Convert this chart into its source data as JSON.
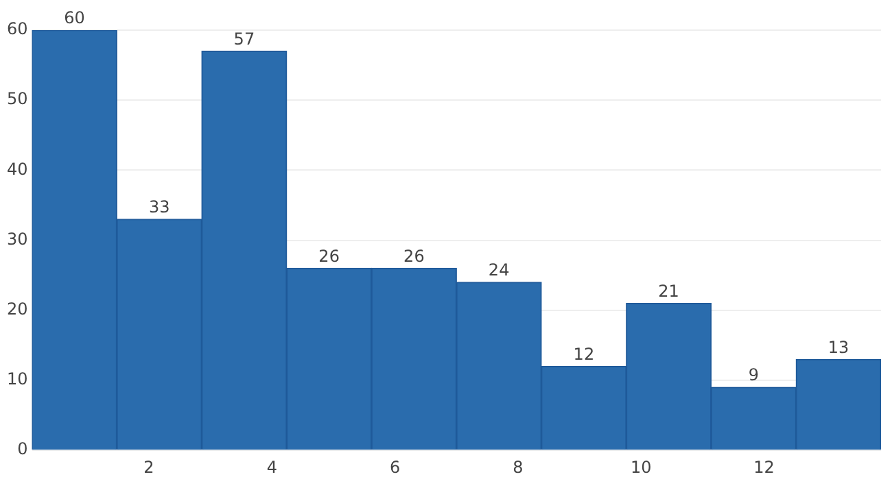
{
  "chart_data": {
    "type": "histogram",
    "bins": [
      0.1,
      1.48,
      2.86,
      4.24,
      5.62,
      7.0,
      8.38,
      9.76,
      11.14,
      12.52,
      13.9
    ],
    "values": [
      60,
      33,
      57,
      26,
      26,
      24,
      12,
      21,
      9,
      13
    ],
    "color": "#2a6cad",
    "xlim": [
      0.1,
      13.9
    ],
    "xticks": [
      2,
      4,
      6,
      8,
      10,
      12
    ],
    "ylim": [
      0,
      60
    ],
    "yticks": [
      0,
      10,
      20,
      30,
      40,
      50,
      60
    ],
    "grid": "y",
    "data_labels": true,
    "legend": false
  }
}
